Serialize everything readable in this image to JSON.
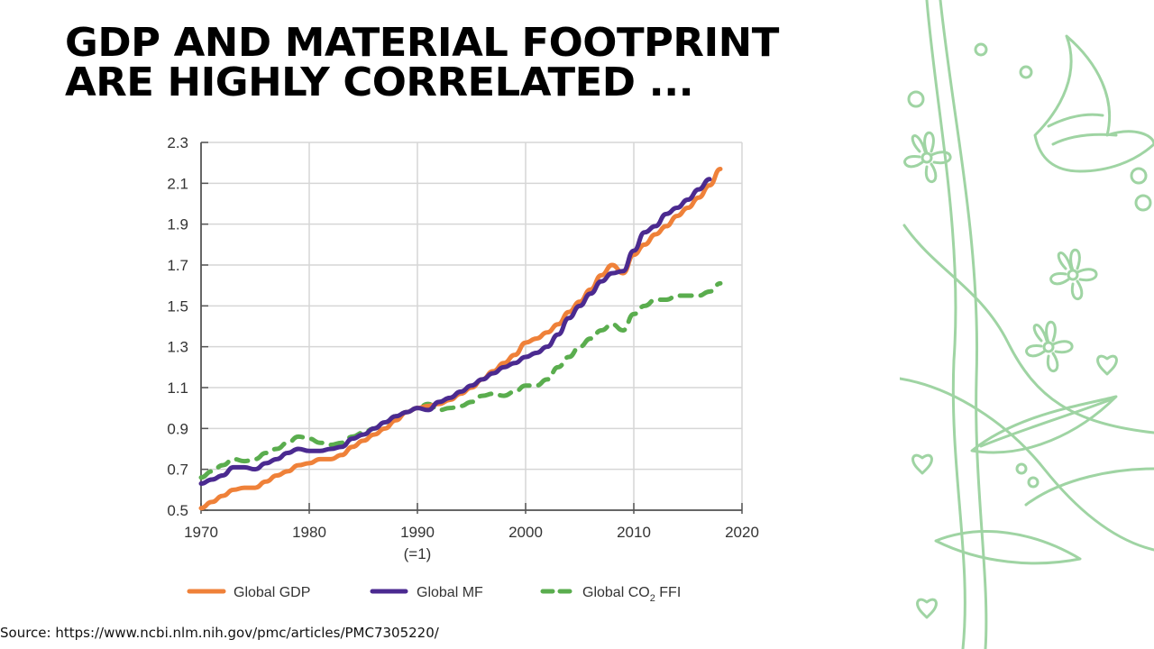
{
  "slide": {
    "title_lines": [
      "GDP AND MATERIAL FOOTPRINT",
      "ARE HIGHLY CORRELATED ..."
    ],
    "source": "Source: https://www.ncbi.nlm.nih.gov/pmc/articles/PMC7305220/",
    "decoration": "green-floral-line-art"
  },
  "chart_data": {
    "type": "line",
    "title": "",
    "xlabel": "",
    "ylabel": "",
    "xlim": [
      1970,
      2020
    ],
    "ylim": [
      0.5,
      2.3
    ],
    "grid": true,
    "legend_position": "bottom",
    "x_ticks": [
      "1970",
      "1980",
      "1990",
      "2000",
      "2010",
      "2020"
    ],
    "x_tick_note": "(=1)",
    "y_ticks": [
      "0.5",
      "0.7",
      "0.9",
      "1.1",
      "1.3",
      "1.5",
      "1.7",
      "1.9",
      "2.1",
      "2.3"
    ],
    "series": [
      {
        "name": "Global GDP",
        "color": "#ef8139",
        "style": "solid",
        "x": [
          1970,
          1971,
          1972,
          1973,
          1974,
          1975,
          1976,
          1977,
          1978,
          1979,
          1980,
          1981,
          1982,
          1983,
          1984,
          1985,
          1986,
          1987,
          1988,
          1989,
          1990,
          1991,
          1992,
          1993,
          1994,
          1995,
          1996,
          1997,
          1998,
          1999,
          2000,
          2001,
          2002,
          2003,
          2004,
          2005,
          2006,
          2007,
          2008,
          2009,
          2010,
          2011,
          2012,
          2013,
          2014,
          2015,
          2016,
          2017,
          2018
        ],
        "values": [
          0.51,
          0.54,
          0.57,
          0.6,
          0.61,
          0.61,
          0.64,
          0.67,
          0.69,
          0.72,
          0.73,
          0.75,
          0.75,
          0.77,
          0.81,
          0.84,
          0.87,
          0.9,
          0.94,
          0.98,
          1.0,
          1.01,
          1.02,
          1.04,
          1.07,
          1.1,
          1.14,
          1.18,
          1.22,
          1.26,
          1.32,
          1.34,
          1.37,
          1.41,
          1.47,
          1.52,
          1.58,
          1.65,
          1.7,
          1.66,
          1.75,
          1.8,
          1.85,
          1.89,
          1.94,
          1.98,
          2.03,
          2.09,
          2.17
        ]
      },
      {
        "name": "Global MF",
        "color": "#4b2a90",
        "style": "solid",
        "x": [
          1970,
          1971,
          1972,
          1973,
          1974,
          1975,
          1976,
          1977,
          1978,
          1979,
          1980,
          1981,
          1982,
          1983,
          1984,
          1985,
          1986,
          1987,
          1988,
          1989,
          1990,
          1991,
          1992,
          1993,
          1994,
          1995,
          1996,
          1997,
          1998,
          1999,
          2000,
          2001,
          2002,
          2003,
          2004,
          2005,
          2006,
          2007,
          2008,
          2009,
          2010,
          2011,
          2012,
          2013,
          2014,
          2015,
          2016,
          2017
        ],
        "values": [
          0.63,
          0.65,
          0.67,
          0.71,
          0.71,
          0.7,
          0.73,
          0.75,
          0.78,
          0.8,
          0.79,
          0.79,
          0.8,
          0.81,
          0.85,
          0.87,
          0.9,
          0.93,
          0.96,
          0.98,
          1.0,
          0.99,
          1.03,
          1.05,
          1.08,
          1.11,
          1.14,
          1.17,
          1.2,
          1.22,
          1.25,
          1.27,
          1.3,
          1.36,
          1.44,
          1.5,
          1.56,
          1.62,
          1.66,
          1.67,
          1.77,
          1.86,
          1.89,
          1.95,
          1.98,
          2.02,
          2.07,
          2.12
        ]
      },
      {
        "name": "Global CO₂ FFI",
        "color": "#5aad4e",
        "style": "dashed",
        "x": [
          1970,
          1971,
          1972,
          1973,
          1974,
          1975,
          1976,
          1977,
          1978,
          1979,
          1980,
          1981,
          1982,
          1983,
          1984,
          1985,
          1986,
          1987,
          1988,
          1989,
          1990,
          1991,
          1992,
          1993,
          1994,
          1995,
          1996,
          1997,
          1998,
          1999,
          2000,
          2001,
          2002,
          2003,
          2004,
          2005,
          2006,
          2007,
          2008,
          2009,
          2010,
          2011,
          2012,
          2013,
          2014,
          2015,
          2016,
          2017,
          2018
        ],
        "values": [
          0.66,
          0.69,
          0.72,
          0.75,
          0.74,
          0.75,
          0.78,
          0.8,
          0.83,
          0.86,
          0.85,
          0.83,
          0.82,
          0.83,
          0.86,
          0.88,
          0.9,
          0.93,
          0.96,
          0.98,
          1.0,
          1.02,
          0.99,
          1.0,
          1.01,
          1.03,
          1.06,
          1.07,
          1.06,
          1.08,
          1.11,
          1.11,
          1.14,
          1.2,
          1.25,
          1.3,
          1.34,
          1.38,
          1.41,
          1.38,
          1.46,
          1.5,
          1.53,
          1.53,
          1.55,
          1.55,
          1.55,
          1.57,
          1.61
        ]
      }
    ]
  },
  "legend": {
    "items": [
      {
        "label": "Global GDP",
        "sub": "",
        "suffix": ""
      },
      {
        "label": "Global CO",
        "sub": "2",
        "suffix": " FFI"
      },
      {
        "label": "Global MF",
        "sub": "",
        "suffix": ""
      }
    ]
  }
}
